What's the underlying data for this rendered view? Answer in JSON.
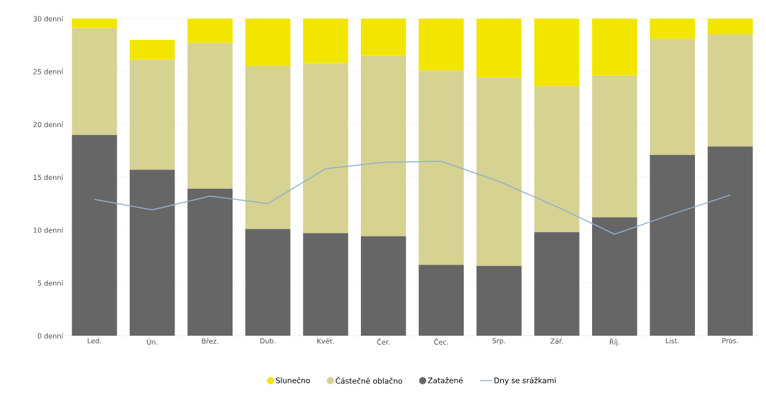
{
  "chart_data": {
    "type": "bar",
    "stacked": true,
    "categories": [
      "Led.",
      "Ún.",
      "Břez.",
      "Dub.",
      "Květ.",
      "Čer.",
      "Čec.",
      "Srp.",
      "Zář.",
      "Říj.",
      "List.",
      "Pros."
    ],
    "series": [
      {
        "name": "Zatažené",
        "color": "#666666",
        "values": [
          19.0,
          15.7,
          13.9,
          10.1,
          9.7,
          9.4,
          6.7,
          6.6,
          9.8,
          11.2,
          17.1,
          17.9
        ]
      },
      {
        "name": "Částečně oblačno",
        "color": "#d6d292",
        "values": [
          10.1,
          10.4,
          13.8,
          15.4,
          16.1,
          17.1,
          18.4,
          17.8,
          13.8,
          13.4,
          11.0,
          10.6
        ]
      },
      {
        "name": "Slunečno",
        "color": "#f2e600",
        "values": [
          0.9,
          1.9,
          2.3,
          4.5,
          4.2,
          3.5,
          4.9,
          5.6,
          6.4,
          5.4,
          1.9,
          1.5
        ]
      },
      {
        "name": "Dny se srážkami",
        "type": "line",
        "color": "#8fb0d0",
        "values": [
          12.9,
          11.9,
          13.2,
          12.5,
          15.8,
          16.4,
          16.5,
          14.6,
          12.2,
          9.6,
          11.5,
          13.3
        ]
      }
    ],
    "ylim": [
      0,
      30
    ],
    "yticks": [
      {
        "value": 0,
        "label": "0 denní"
      },
      {
        "value": 5,
        "label": "5 denní"
      },
      {
        "value": 10,
        "label": "10 denní"
      },
      {
        "value": 15,
        "label": "15 denní"
      },
      {
        "value": 20,
        "label": "20 denní"
      },
      {
        "value": 25,
        "label": "25 denní"
      },
      {
        "value": 30,
        "label": "30 denní"
      }
    ],
    "grid": "y",
    "legend": "bottom"
  }
}
